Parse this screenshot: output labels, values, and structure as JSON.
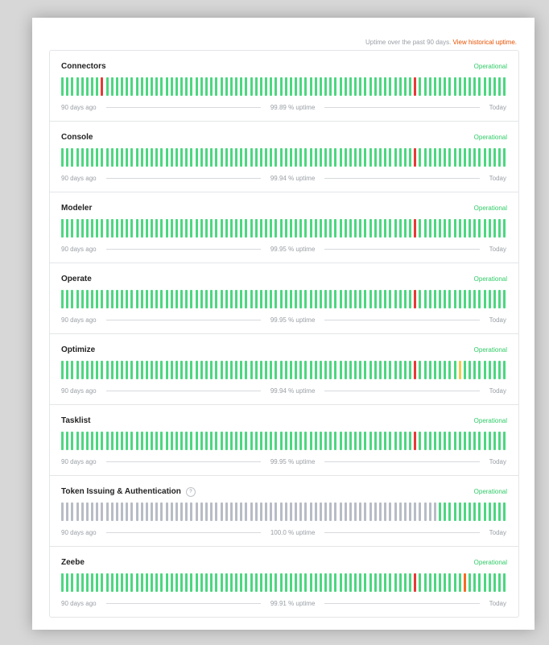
{
  "header": {
    "note": "Uptime over the past 90 days.",
    "link": "View historical uptime."
  },
  "legend": {
    "start": "90 days ago",
    "end": "Today"
  },
  "colors": {
    "operational": "#4cd780",
    "major": "#e53935",
    "minor": "#f2c94c",
    "partial": "#f36c21",
    "no_data": "#b7bcc5"
  },
  "components": [
    {
      "name": "Connectors",
      "status": "Operational",
      "uptime": "99.89 % uptime",
      "help": false,
      "incidents": {
        "8": "red",
        "71": "red"
      }
    },
    {
      "name": "Console",
      "status": "Operational",
      "uptime": "99.94 % uptime",
      "help": false,
      "incidents": {
        "71": "red"
      }
    },
    {
      "name": "Modeler",
      "status": "Operational",
      "uptime": "99.95 % uptime",
      "help": false,
      "incidents": {
        "71": "red"
      }
    },
    {
      "name": "Operate",
      "status": "Operational",
      "uptime": "99.95 % uptime",
      "help": false,
      "incidents": {
        "71": "red"
      }
    },
    {
      "name": "Optimize",
      "status": "Operational",
      "uptime": "99.94 % uptime",
      "help": false,
      "incidents": {
        "71": "red",
        "80": "yellow"
      }
    },
    {
      "name": "Tasklist",
      "status": "Operational",
      "uptime": "99.95 % uptime",
      "help": false,
      "incidents": {
        "71": "red"
      }
    },
    {
      "name": "Token Issuing & Authentication",
      "status": "Operational",
      "uptime": "100.0 % uptime",
      "help": true,
      "no_data_days": 76,
      "incidents": {}
    },
    {
      "name": "Zeebe",
      "status": "Operational",
      "uptime": "99.91 % uptime",
      "help": false,
      "incidents": {
        "71": "red",
        "81": "orange"
      }
    }
  ]
}
